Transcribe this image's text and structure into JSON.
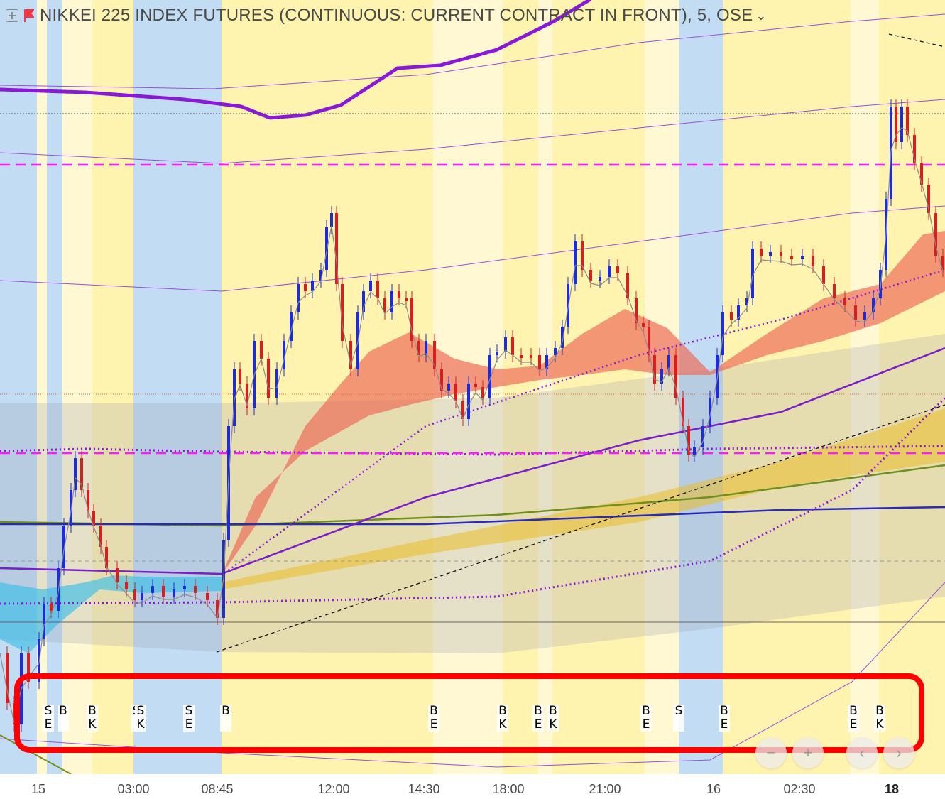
{
  "header": {
    "title": "NIKKEI 225 INDEX FUTURES (CONTINUOUS: CURRENT CONTRACT IN FRONT), 5, OSE",
    "expand_icon": "plus-square-icon",
    "flag_icon": "red-flag-icon",
    "dropdown_icon": "chevron-down-icon",
    "flag_color": "#f23645"
  },
  "time_axis": {
    "ticks": [
      {
        "label": "15",
        "bold": false
      },
      {
        "label": "03:00",
        "bold": false
      },
      {
        "label": "08:45",
        "bold": false
      },
      {
        "label": "12:00",
        "bold": false
      },
      {
        "label": "14:30",
        "bold": false
      },
      {
        "label": "18:00",
        "bold": false
      },
      {
        "label": "21:00",
        "bold": false
      },
      {
        "label": "16",
        "bold": false
      },
      {
        "label": "02:30",
        "bold": false
      },
      {
        "label": "18",
        "bold": true
      }
    ]
  },
  "signals": [
    {
      "l1": "S",
      "l2": "E"
    },
    {
      "l1": "B",
      "l2": ""
    },
    {
      "l1": "B",
      "l2": "K"
    },
    {
      "l1": "S",
      "l2": ""
    },
    {
      "l1": "S",
      "l2": "K"
    },
    {
      "l1": "S",
      "l2": "E"
    },
    {
      "l1": "B",
      "l2": ""
    },
    {
      "l1": "B",
      "l2": "E"
    },
    {
      "l1": "B",
      "l2": "K"
    },
    {
      "l1": "B",
      "l2": "E"
    },
    {
      "l1": "B",
      "l2": "K"
    },
    {
      "l1": "B",
      "l2": "E"
    },
    {
      "l1": "S",
      "l2": ""
    },
    {
      "l1": "B",
      "l2": "E"
    },
    {
      "l1": "B",
      "l2": "E"
    },
    {
      "l1": "B",
      "l2": "K"
    }
  ],
  "nav_buttons": {
    "zoom_out": "−",
    "zoom_in": "+",
    "scroll_left": "‹",
    "scroll_right": "›"
  },
  "colors": {
    "session_blue": "#c2dcf3",
    "session_yellow": "#fff3b0",
    "session_light": "#fff8d2",
    "bull_candle": "#1e2bd8",
    "bear_candle": "#d81e1e",
    "ema_purple": "#8a19d6",
    "magenta_level": "#ff19ff",
    "highlight_box": "#ff0000"
  }
}
